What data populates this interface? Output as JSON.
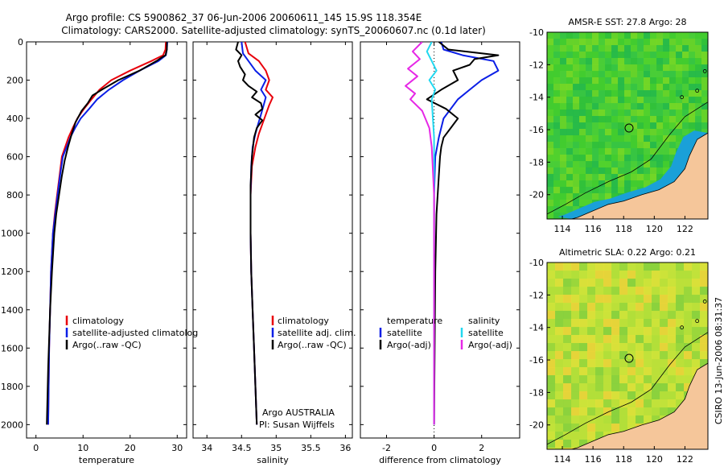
{
  "title": {
    "line1": "Argo profile: CS 5900862_37 06-Jun-2006 20060611_145 15.9S 118.354E",
    "line2": "Climatology: CARS2000. Satellite-adjusted climatology: synTS_20060607.nc (0.1d later)"
  },
  "credit": "CSIRO 13-Jun-2006 08:31:37",
  "chart_data": [
    {
      "type": "line",
      "name": "temperature-profile",
      "xlabel": "temperature",
      "xlim": [
        -2,
        32
      ],
      "ylim": [
        2070,
        0
      ],
      "xticks": [
        0,
        10,
        20,
        30
      ],
      "yticks": [
        0,
        200,
        400,
        600,
        800,
        1000,
        1200,
        1400,
        1600,
        1800,
        2000
      ],
      "legend": [
        "climatology",
        "satellite-adjusted climatolog",
        "Argo(..raw -QC)"
      ],
      "series": [
        {
          "name": "climatology",
          "color": "#e8000b",
          "x": [
            27.6,
            27.5,
            27.0,
            24.5,
            20.0,
            16.0,
            13.5,
            11.8,
            10.2,
            8.8,
            7.8,
            6.9,
            6.2,
            5.5,
            5.0,
            4.5,
            4.0,
            3.6,
            3.2,
            3.0,
            2.8,
            2.6
          ],
          "y": [
            0,
            40,
            70,
            100,
            150,
            200,
            250,
            300,
            350,
            400,
            450,
            500,
            550,
            600,
            700,
            800,
            900,
            1000,
            1200,
            1400,
            1600,
            2000
          ]
        },
        {
          "name": "satellite-adjusted climatology",
          "color": "#0a1ee6",
          "x": [
            27.9,
            27.8,
            27.6,
            26.0,
            22.0,
            18.5,
            15.5,
            13.0,
            11.3,
            9.5,
            8.3,
            7.3,
            6.5,
            5.7,
            5.1,
            4.6,
            4.1,
            3.6,
            3.2,
            3.0,
            2.8,
            2.6
          ],
          "y": [
            0,
            40,
            70,
            100,
            150,
            200,
            250,
            300,
            350,
            400,
            450,
            500,
            550,
            600,
            700,
            800,
            900,
            1000,
            1200,
            1400,
            1600,
            2000
          ]
        },
        {
          "name": "Argo(..raw -QC)",
          "color": "#000000",
          "x": [
            27.8,
            27.8,
            27.5,
            26.8,
            25.6,
            22.0,
            17.5,
            14.0,
            12.0,
            11.0,
            9.7,
            8.4,
            7.6,
            6.8,
            6.1,
            5.5,
            4.9,
            4.3,
            3.9,
            3.4,
            3.0,
            2.6,
            2.3
          ],
          "y": [
            0,
            40,
            70,
            80,
            100,
            150,
            200,
            250,
            280,
            320,
            360,
            420,
            480,
            550,
            620,
            700,
            800,
            900,
            1000,
            1200,
            1400,
            1700,
            2000
          ]
        }
      ]
    },
    {
      "type": "line",
      "name": "salinity-profile",
      "xlabel": "salinity",
      "xlim": [
        33.8,
        36.1
      ],
      "ylim": [
        2070,
        0
      ],
      "xticks": [
        34,
        34.5,
        35,
        35.5,
        36
      ],
      "legend": [
        "climatology",
        "satellite adj. clim.",
        "Argo(..raw -QC)"
      ],
      "annotations": [
        "Argo AUSTRALIA",
        "PI: Susan Wijffels"
      ],
      "series": [
        {
          "name": "climatology",
          "color": "#e8000b",
          "x": [
            34.55,
            34.6,
            34.75,
            34.85,
            34.9,
            34.85,
            34.95,
            34.9,
            34.85,
            34.8,
            34.75,
            34.7,
            34.65,
            34.63,
            34.63,
            34.64,
            34.66,
            34.68,
            34.7,
            34.72
          ],
          "y": [
            0,
            60,
            100,
            150,
            200,
            250,
            290,
            330,
            380,
            430,
            480,
            550,
            650,
            800,
            1000,
            1200,
            1400,
            1600,
            1800,
            2000
          ]
        },
        {
          "name": "satellite adj. clim.",
          "color": "#0a1ee6",
          "x": [
            34.5,
            34.52,
            34.6,
            34.7,
            34.85,
            34.78,
            34.85,
            34.82,
            34.78,
            34.74,
            34.7,
            34.66,
            34.64,
            34.63,
            34.63,
            34.64,
            34.66,
            34.68,
            34.7,
            34.72
          ],
          "y": [
            0,
            60,
            100,
            150,
            200,
            250,
            290,
            330,
            380,
            430,
            480,
            550,
            650,
            800,
            1000,
            1200,
            1400,
            1600,
            1800,
            2000
          ]
        },
        {
          "name": "Argo(..raw -QC)",
          "color": "#000000",
          "x": [
            34.45,
            34.42,
            34.5,
            34.45,
            34.48,
            34.55,
            34.52,
            34.6,
            34.72,
            34.65,
            34.78,
            34.8,
            34.7,
            34.8,
            34.72,
            34.68,
            34.65,
            34.63,
            34.63,
            34.64,
            34.66,
            34.68,
            34.7,
            34.72
          ],
          "y": [
            0,
            40,
            70,
            100,
            130,
            170,
            200,
            230,
            260,
            290,
            320,
            350,
            380,
            410,
            450,
            500,
            600,
            750,
            1000,
            1200,
            1400,
            1600,
            1800,
            2000
          ]
        }
      ]
    },
    {
      "type": "line",
      "name": "difference-profile",
      "xlabel": "difference from climatology",
      "xlim": [
        -3.1,
        3.6
      ],
      "ylim": [
        2070,
        0
      ],
      "xticks": [
        -2,
        0,
        2
      ],
      "legend": [
        "temperature",
        "satellite",
        "Argo(-adj)",
        "salinity",
        "satellite",
        "Argo(-adj)"
      ],
      "series": [
        {
          "name": "temperature satellite",
          "color": "#0a1ee6",
          "x": [
            0.3,
            0.4,
            1.2,
            2.5,
            2.7,
            2.0,
            1.5,
            1.0,
            0.7,
            0.4,
            0.2,
            0.05,
            0.0,
            0.0,
            0.0
          ],
          "y": [
            0,
            40,
            70,
            100,
            150,
            200,
            250,
            300,
            350,
            400,
            500,
            600,
            800,
            1200,
            2000
          ]
        },
        {
          "name": "temperature Argo(-adj)",
          "color": "#000000",
          "x": [
            0.2,
            0.6,
            2.7,
            1.7,
            1.5,
            0.8,
            1.0,
            0.3,
            -0.3,
            0.5,
            1.0,
            0.7,
            0.4,
            0.3,
            0.25,
            0.2,
            0.1,
            0.05,
            0.0
          ],
          "y": [
            0,
            40,
            70,
            90,
            120,
            150,
            200,
            250,
            300,
            350,
            400,
            450,
            500,
            550,
            600,
            700,
            900,
            1200,
            2000
          ]
        },
        {
          "name": "salinity satellite",
          "color": "#22d8f0",
          "x": [
            -0.1,
            -0.3,
            -0.1,
            0.1,
            -0.2,
            0.05,
            -0.1,
            -0.05,
            0.0,
            0.0,
            0.0
          ],
          "y": [
            0,
            50,
            100,
            150,
            200,
            250,
            300,
            400,
            500,
            800,
            2000
          ]
        },
        {
          "name": "salinity Argo(-adj)",
          "color": "#e628e6",
          "x": [
            -0.5,
            -0.9,
            -0.6,
            -1.1,
            -0.7,
            -1.2,
            -0.8,
            -1.0,
            -0.5,
            -0.2,
            -0.1,
            0.0,
            0.0
          ],
          "y": [
            0,
            50,
            90,
            140,
            180,
            230,
            270,
            300,
            360,
            450,
            550,
            800,
            2000
          ]
        }
      ]
    },
    {
      "type": "heatmap",
      "name": "sst-map",
      "title": "AMSR-E SST: 27.8 Argo: 28",
      "xlim": [
        113,
        123.5
      ],
      "ylim": [
        -21.5,
        -10
      ],
      "xticks": [
        114,
        116,
        118,
        120,
        122
      ],
      "yticks": [
        -10,
        -12,
        -14,
        -16,
        -18,
        -20
      ],
      "profile_location": [
        118.354,
        -15.9
      ]
    },
    {
      "type": "heatmap",
      "name": "sla-map",
      "title": "Altimetric SLA: 0.22 Argo: 0.21",
      "xlim": [
        113,
        123.5
      ],
      "ylim": [
        -21.5,
        -10
      ],
      "xticks": [
        114,
        116,
        118,
        120,
        122
      ],
      "yticks": [
        -10,
        -12,
        -14,
        -16,
        -18,
        -20
      ],
      "profile_location": [
        118.354,
        -15.9
      ]
    }
  ]
}
